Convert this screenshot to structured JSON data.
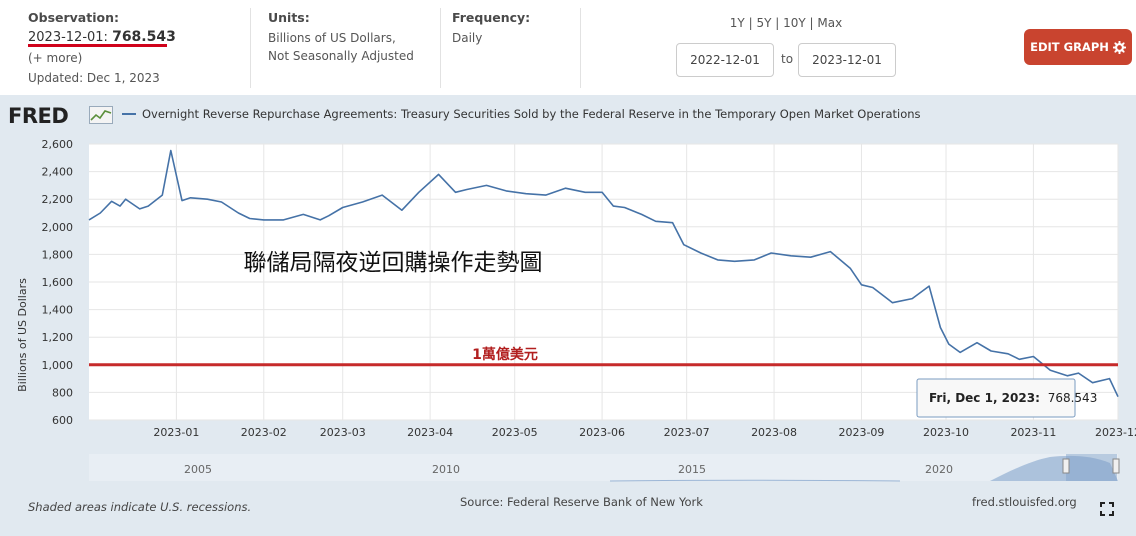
{
  "header": {
    "observation_label": "Observation:",
    "observation_date": "2023-12-01:",
    "observation_value": "768.543",
    "more_link": "(+ more)",
    "updated": "Updated: Dec 1, 2023",
    "units_label": "Units:",
    "units_line1": "Billions of US Dollars,",
    "units_line2": "Not Seasonally Adjusted",
    "frequency_label": "Frequency:",
    "frequency_value": "Daily",
    "range_1y": "1Y",
    "range_5y": "5Y",
    "range_10y": "10Y",
    "range_max": "Max",
    "range_sep": "|",
    "start_date": "2022-12-01",
    "to_label": "to",
    "end_date": "2023-12-01",
    "edit_button": "EDIT GRAPH",
    "accent_color": "#d0021b",
    "button_color": "#c9442f"
  },
  "graph": {
    "logo_text": "FRED",
    "footer_note": "Shaded areas indicate U.S. recessions.",
    "source": "Source: Federal Reserve Bank of New York",
    "site": "fred.stlouisfed.org",
    "tooltip_date": "Fri, Dec 1, 2023:",
    "tooltip_value": "768.543",
    "overview_years": [
      "2005",
      "2010",
      "2015",
      "2020"
    ],
    "annotation_title": "聯儲局隔夜逆回購操作走勢圖",
    "threshold_label": "1萬億美元",
    "line_color": "#4572a7"
  },
  "chart_data": {
    "type": "line",
    "title": "",
    "series": [
      {
        "name": "Overnight Reverse Repurchase Agreements: Treasury Securities Sold by the Federal Reserve in the Temporary Open Market Operations",
        "x": [
          "2022-12-01",
          "2022-12-05",
          "2022-12-09",
          "2022-12-12",
          "2022-12-14",
          "2022-12-19",
          "2022-12-22",
          "2022-12-27",
          "2022-12-30",
          "2023-01-03",
          "2023-01-06",
          "2023-01-12",
          "2023-01-17",
          "2023-01-23",
          "2023-01-27",
          "2023-02-01",
          "2023-02-08",
          "2023-02-15",
          "2023-02-21",
          "2023-02-24",
          "2023-03-01",
          "2023-03-08",
          "2023-03-15",
          "2023-03-22",
          "2023-03-28",
          "2023-04-04",
          "2023-04-10",
          "2023-04-14",
          "2023-04-21",
          "2023-04-28",
          "2023-05-05",
          "2023-05-12",
          "2023-05-19",
          "2023-05-26",
          "2023-06-01",
          "2023-06-05",
          "2023-06-09",
          "2023-06-15",
          "2023-06-20",
          "2023-06-26",
          "2023-06-30",
          "2023-07-06",
          "2023-07-12",
          "2023-07-18",
          "2023-07-25",
          "2023-07-31",
          "2023-08-07",
          "2023-08-14",
          "2023-08-21",
          "2023-08-28",
          "2023-09-01",
          "2023-09-05",
          "2023-09-12",
          "2023-09-19",
          "2023-09-25",
          "2023-09-29",
          "2023-10-02",
          "2023-10-06",
          "2023-10-12",
          "2023-10-17",
          "2023-10-23",
          "2023-10-27",
          "2023-11-01",
          "2023-11-07",
          "2023-11-13",
          "2023-11-17",
          "2023-11-22",
          "2023-11-28",
          "2023-12-01"
        ],
        "values": [
          2050,
          2100,
          2185,
          2150,
          2200,
          2130,
          2150,
          2230,
          2553,
          2190,
          2210,
          2200,
          2180,
          2100,
          2060,
          2050,
          2050,
          2090,
          2050,
          2080,
          2140,
          2180,
          2230,
          2120,
          2250,
          2380,
          2250,
          2270,
          2300,
          2260,
          2240,
          2230,
          2280,
          2250,
          2250,
          2150,
          2140,
          2090,
          2040,
          2030,
          1870,
          1810,
          1760,
          1750,
          1760,
          1810,
          1790,
          1780,
          1820,
          1700,
          1580,
          1560,
          1450,
          1480,
          1570,
          1270,
          1150,
          1090,
          1160,
          1100,
          1080,
          1040,
          1060,
          960,
          920,
          940,
          870,
          900,
          768.543
        ]
      }
    ],
    "x_ticks": [
      "2023-01",
      "2023-02",
      "2023-03",
      "2023-04",
      "2023-05",
      "2023-06",
      "2023-07",
      "2023-08",
      "2023-09",
      "2023-10",
      "2023-11",
      "2023-12"
    ],
    "ylabel": "Billions of US Dollars",
    "ylim": [
      600,
      2600
    ],
    "y_ticks": [
      "600",
      "800",
      "1,000",
      "1,200",
      "1,400",
      "1,600",
      "1,800",
      "2,000",
      "2,200",
      "2,400",
      "2,600"
    ],
    "threshold": 1000,
    "grid": true,
    "legend": "top-left"
  }
}
